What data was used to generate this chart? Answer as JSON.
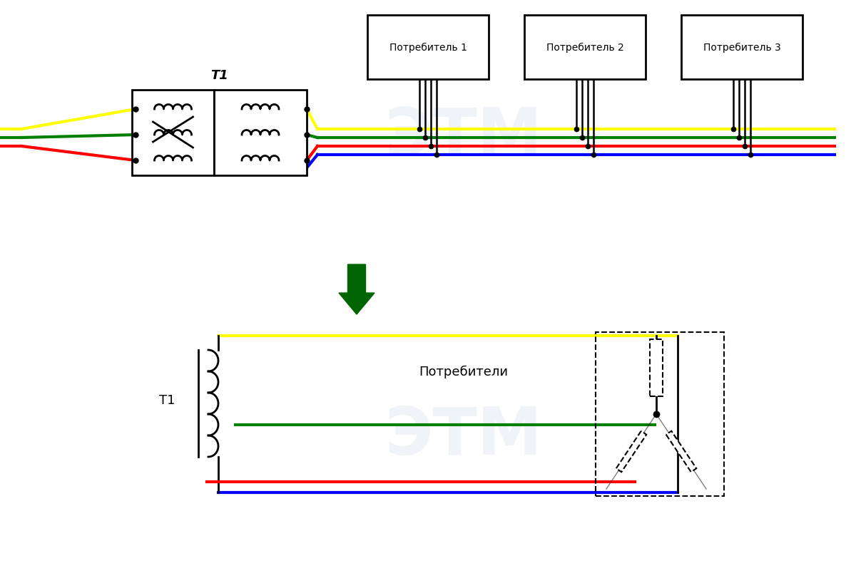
{
  "bg_color": "#ffffff",
  "etm_logo_color": "#d0d8e8",
  "wire_yellow": "#ffff00",
  "wire_green": "#008000",
  "wire_red": "#ff0000",
  "wire_blue": "#0000ff",
  "wire_black": "#000000",
  "arrow_color": "#006400",
  "consumer_labels": [
    "Потребитель 1",
    "Потребитель 2",
    "Потребитель 3"
  ],
  "t1_label": "T1",
  "potrebiteli_label": "Потребители",
  "lw": 2.5
}
